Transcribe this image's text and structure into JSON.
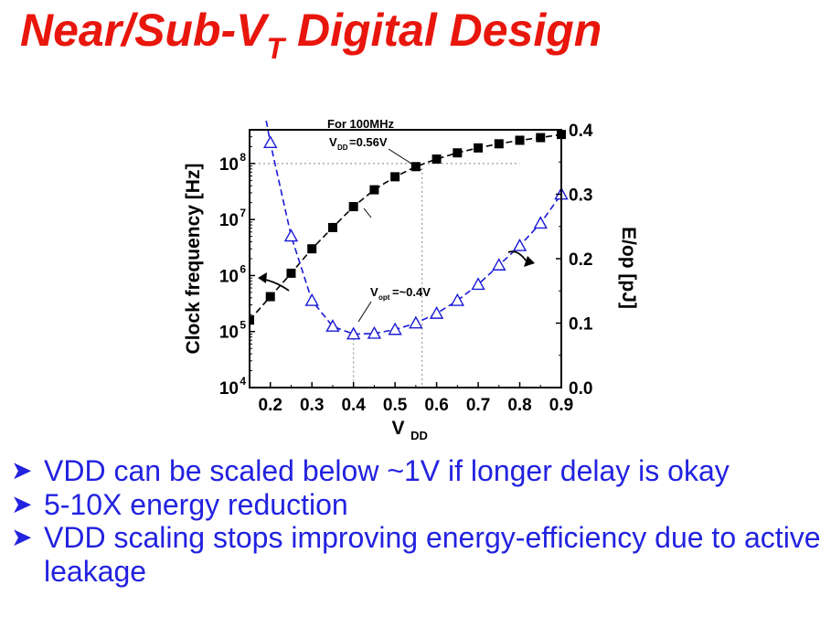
{
  "slide": {
    "title_main": "Near/Sub-V",
    "title_sub": "T",
    "title_rest": " Digital Design",
    "title_color": "#e8160c"
  },
  "bullets": [
    "VDD can be scaled below ~1V if longer delay is okay",
    "5-10X energy reduction",
    "VDD scaling stops improving energy-efficiency due to active leakage"
  ],
  "bullet_marker_icon": "arrowhead-bullet-icon",
  "bullet_color": "#2222e0",
  "chart_data": {
    "type": "line",
    "xlabel": "V",
    "xlabel_sub": "DD",
    "xlim": [
      0.15,
      0.9
    ],
    "xticks": [
      "0.2",
      "0.3",
      "0.4",
      "0.5",
      "0.6",
      "0.7",
      "0.8",
      "0.9"
    ],
    "y_left": {
      "label": "Clock frequency [Hz]",
      "scale": "log",
      "lim": [
        10000,
        400000000
      ],
      "ticks": [
        {
          "base": "10",
          "exp": "4"
        },
        {
          "base": "10",
          "exp": "5"
        },
        {
          "base": "10",
          "exp": "6"
        },
        {
          "base": "10",
          "exp": "7"
        },
        {
          "base": "10",
          "exp": "8"
        }
      ]
    },
    "y_right": {
      "label": "E/op [pJ]",
      "scale": "linear",
      "lim": [
        0.0,
        0.4
      ],
      "ticks": [
        "0.0",
        "0.1",
        "0.2",
        "0.3",
        "0.4"
      ]
    },
    "series": [
      {
        "axis": "left",
        "marker": "filled-square",
        "color": "#000000",
        "x": [
          0.15,
          0.2,
          0.25,
          0.3,
          0.35,
          0.4,
          0.45,
          0.5,
          0.55,
          0.6,
          0.65,
          0.7,
          0.75,
          0.8,
          0.85,
          0.9
        ],
        "y": [
          160000,
          420000,
          1100000,
          3000000,
          7200000,
          17000000,
          34000000,
          58000000,
          88000000,
          120000000,
          155000000,
          190000000,
          225000000,
          260000000,
          290000000,
          330000000
        ]
      },
      {
        "axis": "right",
        "marker": "open-triangle",
        "color": "#1a1ad6",
        "x": [
          0.2,
          0.25,
          0.3,
          0.35,
          0.4,
          0.45,
          0.5,
          0.55,
          0.6,
          0.65,
          0.7,
          0.75,
          0.8,
          0.85,
          0.9
        ],
        "y": [
          0.38,
          0.235,
          0.135,
          0.095,
          0.083,
          0.084,
          0.09,
          0.1,
          0.115,
          0.135,
          0.16,
          0.19,
          0.22,
          0.255,
          0.3
        ]
      }
    ],
    "annotations": {
      "freq_note_line1": "For 100MHz",
      "freq_note_line2_main": "V",
      "freq_note_line2_sub": "DD",
      "freq_note_line2_rest": "=0.56V",
      "vopt_main": "V",
      "vopt_sub": "opt",
      "vopt_rest": "=~0.4V",
      "guide_freq_hz": 100000000,
      "guide_vdd_freq": 0.565,
      "guide_vdd_opt": 0.4
    }
  }
}
